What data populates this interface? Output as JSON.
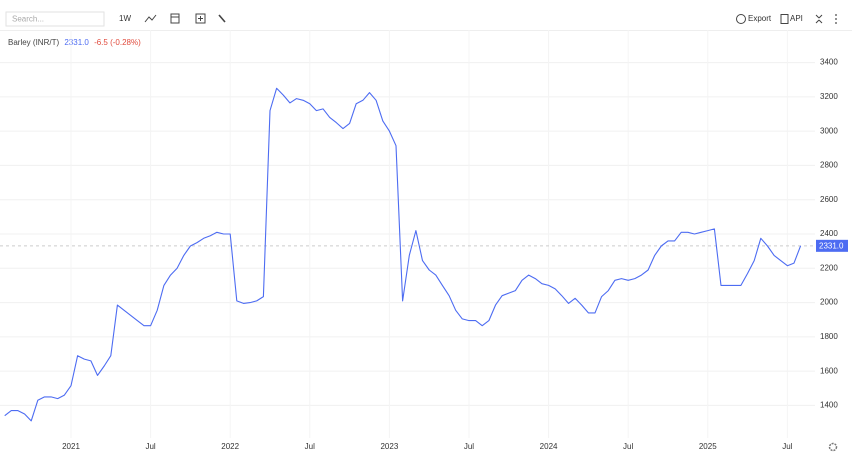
{
  "toolbar": {
    "search_placeholder": "Search...",
    "interval": "1W",
    "export": "Export",
    "api": "API"
  },
  "chart_data": {
    "type": "line",
    "legend": {
      "name": "Barley (INR/T)",
      "last": "2331.0",
      "change": "-6.5 (-0.28%)"
    },
    "categories": [
      null,
      null,
      null,
      null,
      null,
      null,
      null,
      null,
      null,
      null,
      "2021",
      null,
      null,
      null,
      null,
      null,
      null,
      null,
      null,
      null,
      null,
      null,
      "Jul",
      null,
      null,
      null,
      null,
      null,
      null,
      null,
      null,
      null,
      null,
      null,
      "2022",
      null,
      null,
      null,
      null,
      null,
      null,
      null,
      null,
      null,
      null,
      null,
      "Jul",
      null,
      null,
      null,
      null,
      null,
      null,
      null,
      null,
      null,
      null,
      null,
      "2023",
      null,
      null,
      null,
      null,
      null,
      null,
      null,
      null,
      null,
      null,
      null,
      "Jul",
      null,
      null,
      null,
      null,
      null,
      null,
      null,
      null,
      null,
      null,
      null,
      "2024",
      null,
      null,
      null,
      null,
      null,
      null,
      null,
      null,
      null,
      null,
      null,
      "Jul",
      null,
      null,
      null,
      null,
      null,
      null,
      null,
      null,
      null,
      null,
      null,
      "2025",
      null,
      null,
      null,
      null,
      null,
      null,
      null,
      null,
      null,
      null,
      null,
      "Jul",
      null,
      null
    ],
    "series": [
      {
        "name": "Barley (INR/T)",
        "color": "#4d6cf2",
        "values": [
          1340,
          1370,
          1370,
          1350,
          1310,
          1430,
          1450,
          1450,
          1440,
          1460,
          1515,
          1690,
          1670,
          1660,
          1575,
          1630,
          1690,
          1985,
          1955,
          1925,
          1895,
          1865,
          1865,
          1955,
          2100,
          2160,
          2200,
          2275,
          2330,
          2350,
          2375,
          2390,
          2410,
          2400,
          2400,
          2010,
          1995,
          2000,
          2010,
          2035,
          3120,
          3250,
          3210,
          3165,
          3190,
          3180,
          3160,
          3120,
          3130,
          3080,
          3050,
          3015,
          3045,
          3160,
          3180,
          3225,
          3180,
          3060,
          3000,
          2915,
          2010,
          2275,
          2420,
          2245,
          2190,
          2160,
          2100,
          2040,
          1955,
          1905,
          1895,
          1895,
          1865,
          1895,
          1985,
          2040,
          2055,
          2070,
          2130,
          2160,
          2140,
          2110,
          2100,
          2080,
          2040,
          1995,
          2025,
          1985,
          1940,
          1940,
          2035,
          2070,
          2130,
          2140,
          2130,
          2140,
          2160,
          2190,
          2275,
          2330,
          2360,
          2360,
          2410,
          2410,
          2400,
          2410,
          2420,
          2430,
          2100,
          2100,
          2100,
          2100,
          2170,
          2245,
          2375,
          2330,
          2275,
          2245,
          2215,
          2230,
          2331
        ]
      }
    ],
    "ylim": [
      1210,
      3590
    ],
    "yticks": [
      1400,
      1600,
      1800,
      2000,
      2200,
      2400,
      2600,
      2800,
      3000,
      3200,
      3400
    ],
    "grid": true
  }
}
